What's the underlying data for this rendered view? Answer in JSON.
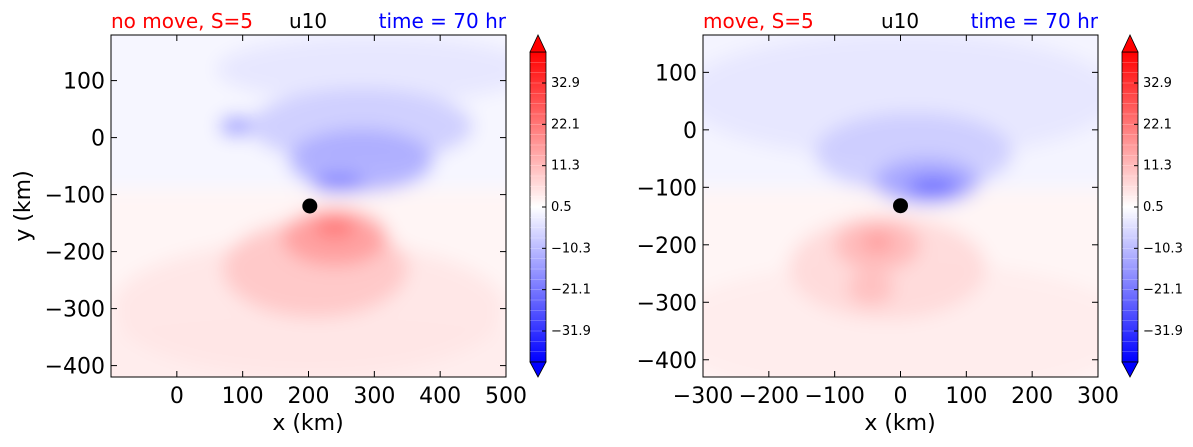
{
  "colors": {
    "positive": "#ff0000",
    "negative": "#0000ff",
    "title_left": "#ff0000",
    "title_center": "#000000",
    "title_right": "#0000ff"
  },
  "chart_data": [
    {
      "type": "heatmap",
      "title_left": "no move, S=5",
      "title_center": "u10",
      "title_right": "time = 70 hr",
      "xlabel": "x (km)",
      "ylabel": "y (km)",
      "xlim": [
        -100,
        500
      ],
      "ylim": [
        -420,
        180
      ],
      "xticks": [
        0,
        100,
        200,
        300,
        400,
        500
      ],
      "xtick_labels": [
        "0",
        "100",
        "200",
        "300",
        "400",
        "500"
      ],
      "yticks": [
        100,
        0,
        -100,
        -200,
        -300,
        -400
      ],
      "ytick_labels": [
        "100",
        "0",
        "−100",
        "−200",
        "−300",
        "−400"
      ],
      "marker": {
        "x": 202,
        "y": -120
      },
      "colorbar": {
        "tick_values": [
          32.9,
          22.1,
          11.3,
          0.5,
          -10.3,
          -21.1,
          -31.9
        ],
        "tick_labels": [
          "32.9",
          "22.1",
          "11.3",
          "0.5",
          "−10.3",
          "−21.1",
          "−31.9"
        ],
        "range": [
          -40,
          41
        ]
      },
      "blobs": [
        {
          "x": 200,
          "y": -390,
          "rx": 400,
          "ry": 85,
          "v": 3
        },
        {
          "x": 200,
          "y": -300,
          "rx": 300,
          "ry": 120,
          "v": 4
        },
        {
          "x": 210,
          "y": -230,
          "rx": 140,
          "ry": 85,
          "v": 9
        },
        {
          "x": 240,
          "y": -175,
          "rx": 80,
          "ry": 50,
          "v": 15
        },
        {
          "x": 240,
          "y": -155,
          "rx": 32,
          "ry": 22,
          "v": 20
        },
        {
          "x": 300,
          "y": 120,
          "rx": 240,
          "ry": 60,
          "v": -4
        },
        {
          "x": 280,
          "y": 20,
          "rx": 170,
          "ry": 65,
          "v": -8
        },
        {
          "x": 280,
          "y": -40,
          "rx": 110,
          "ry": 55,
          "v": -13
        },
        {
          "x": 245,
          "y": -80,
          "rx": 40,
          "ry": 16,
          "v": -20
        },
        {
          "x": 90,
          "y": 20,
          "rx": 25,
          "ry": 18,
          "v": -16
        }
      ]
    },
    {
      "type": "heatmap",
      "title_left": "move, S=5",
      "title_center": "u10",
      "title_right": "time = 70 hr",
      "xlabel": "x (km)",
      "ylabel": "",
      "xlim": [
        -300,
        300
      ],
      "ylim": [
        -430,
        165
      ],
      "xticks": [
        -300,
        -200,
        -100,
        0,
        100,
        200,
        300
      ],
      "xtick_labels": [
        "−300",
        "−200",
        "−100",
        "0",
        "100",
        "200",
        "300"
      ],
      "yticks": [
        100,
        0,
        -100,
        -200,
        -300,
        -400
      ],
      "ytick_labels": [
        "100",
        "0",
        "−100",
        "−200",
        "−300",
        "−400"
      ],
      "marker": {
        "x": 0,
        "y": -132
      },
      "colorbar": {
        "tick_values": [
          32.9,
          22.1,
          11.3,
          0.5,
          -10.3,
          -21.1,
          -31.9
        ],
        "tick_labels": [
          "32.9",
          "22.1",
          "11.3",
          "0.5",
          "−10.3",
          "−21.1",
          "−31.9"
        ],
        "range": [
          -40,
          41
        ]
      },
      "blobs": [
        {
          "x": 0,
          "y": -350,
          "rx": 360,
          "ry": 120,
          "v": 3
        },
        {
          "x": -20,
          "y": -240,
          "rx": 150,
          "ry": 90,
          "v": 6
        },
        {
          "x": -35,
          "y": -200,
          "rx": 65,
          "ry": 45,
          "v": 11
        },
        {
          "x": -35,
          "y": -195,
          "rx": 22,
          "ry": 15,
          "v": 16
        },
        {
          "x": -45,
          "y": -275,
          "rx": 35,
          "ry": 30,
          "v": 10
        },
        {
          "x": 0,
          "y": 60,
          "rx": 330,
          "ry": 110,
          "v": -4
        },
        {
          "x": 20,
          "y": -40,
          "rx": 150,
          "ry": 70,
          "v": -8
        },
        {
          "x": 40,
          "y": -90,
          "rx": 80,
          "ry": 40,
          "v": -14
        },
        {
          "x": 50,
          "y": -100,
          "rx": 40,
          "ry": 18,
          "v": -22
        }
      ]
    }
  ]
}
